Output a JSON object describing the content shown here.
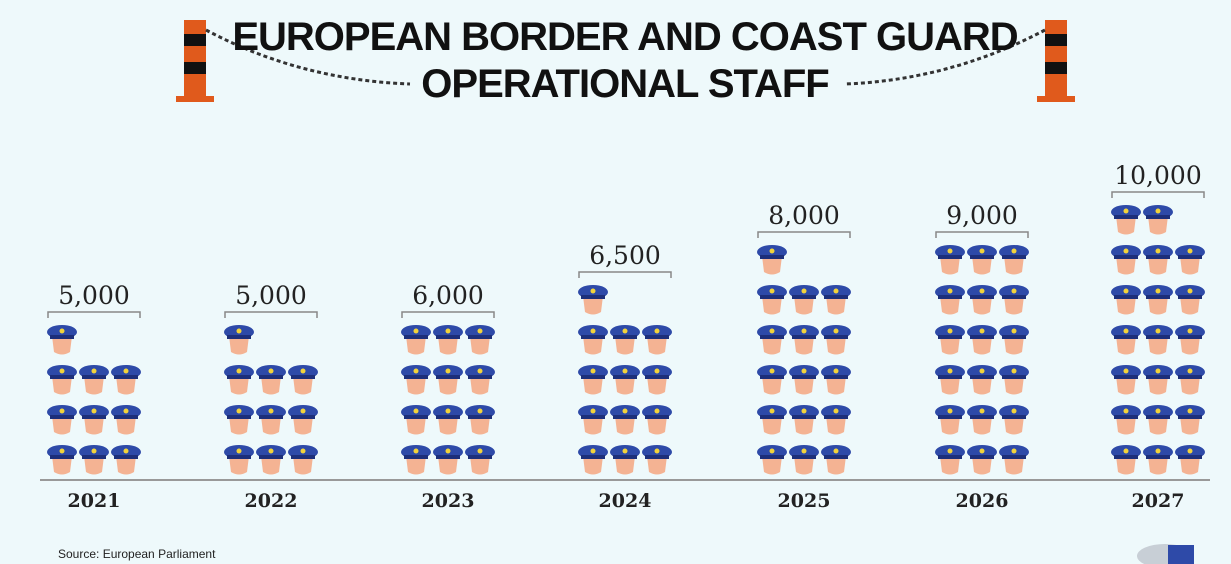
{
  "chart_data": {
    "type": "pictogram",
    "title": "EUROPEAN BORDER AND COAST GUARD",
    "subtitle": "OPERATIONAL STAFF",
    "source": "Source: European Parliament",
    "categories": [
      "2021",
      "2022",
      "2023",
      "2024",
      "2025",
      "2026",
      "2027"
    ],
    "values": [
      5000,
      5000,
      6000,
      6500,
      8000,
      9000,
      10000
    ],
    "value_labels": [
      "5,000",
      "5,000",
      "6,000",
      "6,500",
      "8,000",
      "9,000",
      "10,000"
    ],
    "color": "#2e4aa8"
  }
}
